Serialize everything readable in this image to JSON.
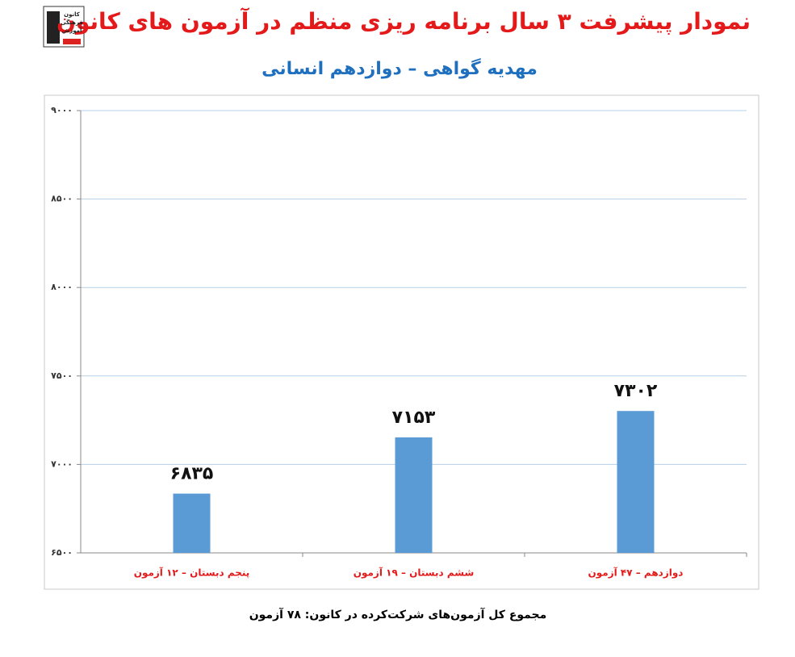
{
  "chart_data": {
    "type": "bar",
    "title": "نمودار پیشرفت ۳ سال برنامه ریزی منظم در آزمون های کانون",
    "subtitle": "مهدیه گواهی – دوازدهم انسانی",
    "categories": [
      "پنجم دبستان – ۱۲ آزمون",
      "ششم دبستان – ۱۹ آزمون",
      "دوازدهم – ۴۷ آزمون"
    ],
    "values": [
      6835,
      7153,
      7302
    ],
    "value_labels": [
      "۶۸۳۵",
      "۷۱۵۳",
      "۷۳۰۲"
    ],
    "color": "#5b9bd5",
    "ylim": [
      6500,
      9000
    ],
    "yticks": [
      {
        "value": 6500,
        "label": "۶۵۰۰"
      },
      {
        "value": 7000,
        "label": "۷۰۰۰"
      },
      {
        "value": 7500,
        "label": "۷۵۰۰"
      },
      {
        "value": 8000,
        "label": "۸۰۰۰"
      },
      {
        "value": 8500,
        "label": "۸۵۰۰"
      },
      {
        "value": 9000,
        "label": "۹۰۰۰"
      }
    ],
    "grid": true,
    "footer": "مجموع کل آزمون‌های شرکت‌کرده در کانون: ۷۸ آزمون",
    "logo_text": [
      "کانون",
      "فرهنگی",
      "آموزش"
    ]
  }
}
